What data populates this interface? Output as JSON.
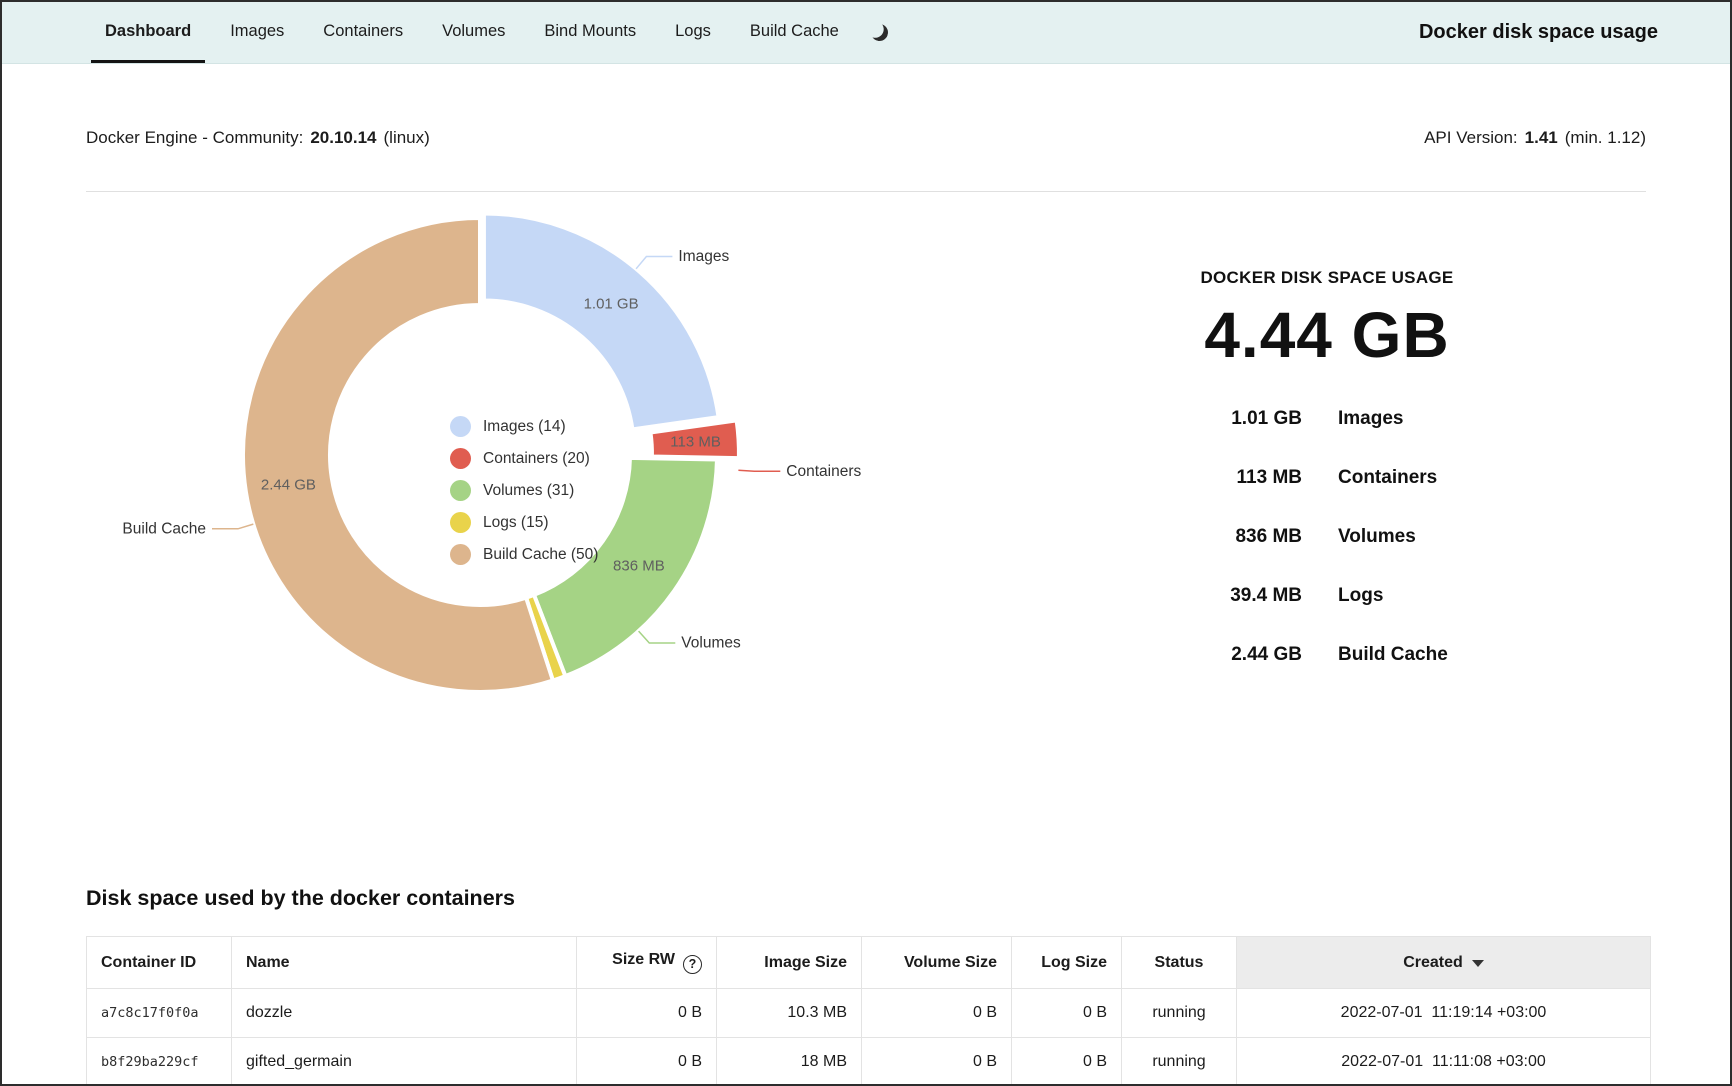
{
  "page": {
    "title": "Docker disk space usage"
  },
  "nav": {
    "theme_toggle_icon": "moon-icon",
    "tabs": [
      {
        "label": "Dashboard",
        "active": true
      },
      {
        "label": "Images",
        "active": false
      },
      {
        "label": "Containers",
        "active": false
      },
      {
        "label": "Volumes",
        "active": false
      },
      {
        "label": "Bind Mounts",
        "active": false
      },
      {
        "label": "Logs",
        "active": false
      },
      {
        "label": "Build Cache",
        "active": false
      }
    ]
  },
  "engine": {
    "label": "Docker Engine - Community:",
    "version": "20.10.14",
    "platform": "(linux)",
    "api_label": "API Version:",
    "api_version": "1.41",
    "api_min": "(min. 1.12)"
  },
  "summary": {
    "heading": "DOCKER DISK SPACE USAGE",
    "total": "4.44 GB",
    "rows": [
      {
        "value": "1.01 GB",
        "label": "Images"
      },
      {
        "value": "113 MB",
        "label": "Containers"
      },
      {
        "value": "836 MB",
        "label": "Volumes"
      },
      {
        "value": "39.4 MB",
        "label": "Logs"
      },
      {
        "value": "2.44 GB",
        "label": "Build Cache"
      }
    ]
  },
  "chart_data": {
    "type": "pie",
    "variant": "donut",
    "unit": "GB",
    "total_label": "4.44 GB",
    "legend_position": "center",
    "slices": [
      {
        "name": "Images",
        "count": 14,
        "value_gb": 1.01,
        "size_label": "1.01 GB",
        "color": "#c5d8f6",
        "labeled": true
      },
      {
        "name": "Containers",
        "count": 20,
        "value_gb": 0.113,
        "size_label": "113 MB",
        "color": "#e05d50",
        "labeled": true
      },
      {
        "name": "Volumes",
        "count": 31,
        "value_gb": 0.836,
        "size_label": "836 MB",
        "color": "#a5d385",
        "labeled": true
      },
      {
        "name": "Logs",
        "count": 15,
        "value_gb": 0.0394,
        "size_label": "39.4 MB",
        "color": "#e9d34b",
        "labeled": false
      },
      {
        "name": "Build Cache",
        "count": 50,
        "value_gb": 2.44,
        "size_label": "2.44 GB",
        "color": "#ddb58d",
        "labeled": true
      }
    ],
    "legend": [
      "Images (14)",
      "Containers (20)",
      "Volumes (31)",
      "Logs (15)",
      "Build Cache (50)"
    ]
  },
  "containers_table": {
    "heading": "Disk space used by the docker containers",
    "help_glyph": "?",
    "columns": [
      {
        "key": "container_id",
        "label": "Container ID",
        "align": "left"
      },
      {
        "key": "name",
        "label": "Name",
        "align": "left"
      },
      {
        "key": "size_rw",
        "label": "Size RW",
        "align": "right",
        "help": true
      },
      {
        "key": "image_size",
        "label": "Image Size",
        "align": "right"
      },
      {
        "key": "volume_size",
        "label": "Volume Size",
        "align": "right"
      },
      {
        "key": "log_size",
        "label": "Log Size",
        "align": "right"
      },
      {
        "key": "status",
        "label": "Status",
        "align": "center"
      },
      {
        "key": "created",
        "label": "Created",
        "align": "center",
        "sorted": "desc"
      }
    ],
    "rows": [
      {
        "container_id": "a7c8c17f0f0a",
        "name": "dozzle",
        "size_rw": "0 B",
        "image_size": "10.3 MB",
        "volume_size": "0 B",
        "log_size": "0 B",
        "status": "running",
        "created": "2022-07-01  11:19:14 +03:00"
      },
      {
        "container_id": "b8f29ba229cf",
        "name": "gifted_germain",
        "size_rw": "0 B",
        "image_size": "18 MB",
        "volume_size": "0 B",
        "log_size": "0 B",
        "status": "running",
        "created": "2022-07-01  11:11:08 +03:00"
      }
    ]
  }
}
